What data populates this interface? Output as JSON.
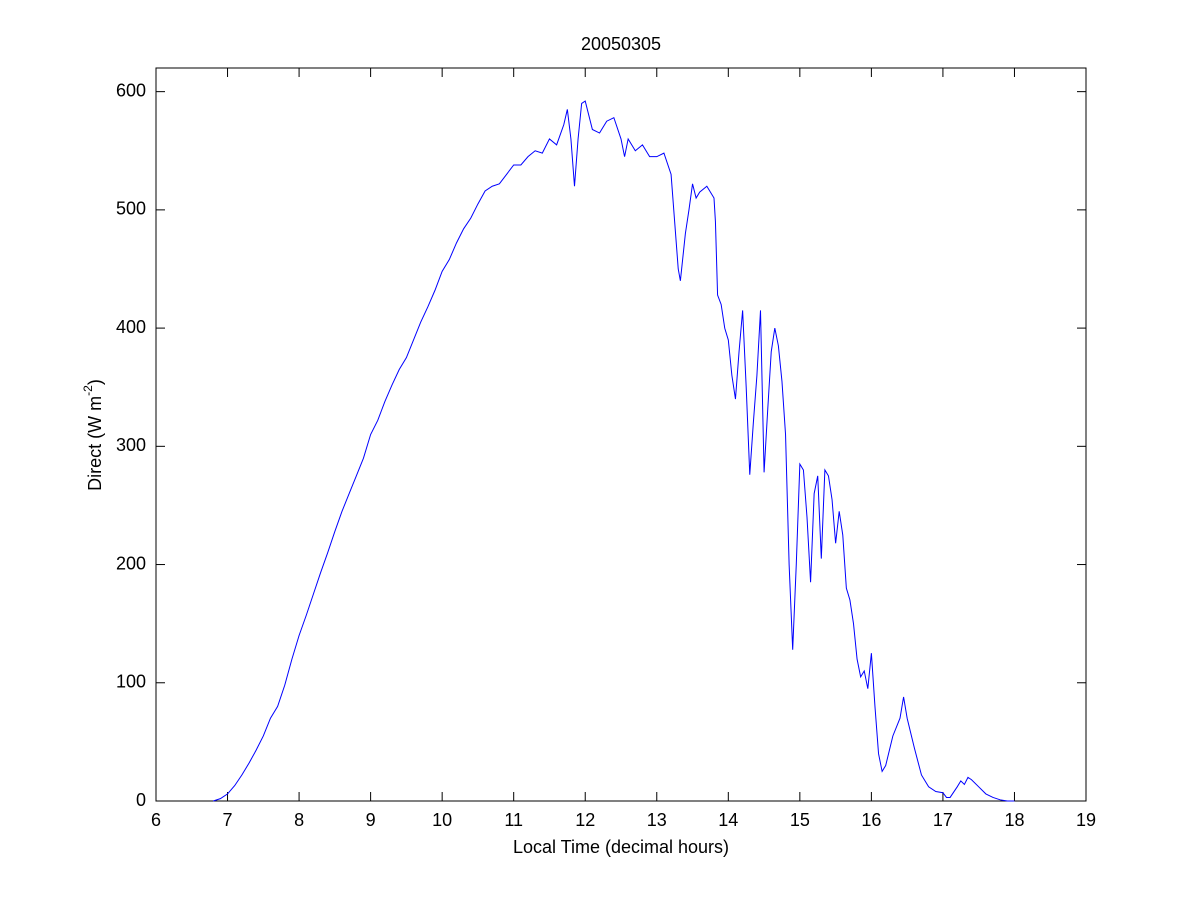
{
  "chart_data": {
    "type": "line",
    "title": "20050305",
    "xlabel": "Local Time (decimal hours)",
    "ylabel": [
      "Direct (W m",
      "-2",
      ")"
    ],
    "xlim": [
      6,
      19
    ],
    "xticks": [
      6,
      7,
      8,
      9,
      10,
      11,
      12,
      13,
      14,
      15,
      16,
      17,
      18,
      19
    ],
    "ylim": [
      0,
      620
    ],
    "yticks": [
      0,
      100,
      200,
      300,
      400,
      500,
      600
    ],
    "color": "#0000ff",
    "x": [
      6.8,
      6.9,
      7.0,
      7.1,
      7.2,
      7.3,
      7.4,
      7.5,
      7.6,
      7.7,
      7.8,
      7.9,
      8.0,
      8.1,
      8.2,
      8.3,
      8.4,
      8.5,
      8.6,
      8.7,
      8.8,
      8.9,
      9.0,
      9.1,
      9.2,
      9.3,
      9.4,
      9.5,
      9.6,
      9.7,
      9.8,
      9.9,
      10.0,
      10.1,
      10.2,
      10.3,
      10.4,
      10.5,
      10.6,
      10.7,
      10.8,
      10.9,
      11.0,
      11.1,
      11.2,
      11.3,
      11.4,
      11.5,
      11.6,
      11.7,
      11.75,
      11.8,
      11.85,
      11.9,
      11.95,
      12.0,
      12.1,
      12.2,
      12.3,
      12.4,
      12.5,
      12.55,
      12.6,
      12.7,
      12.8,
      12.9,
      13.0,
      13.1,
      13.2,
      13.25,
      13.3,
      13.33,
      13.4,
      13.45,
      13.5,
      13.55,
      13.6,
      13.7,
      13.8,
      13.82,
      13.85,
      13.9,
      13.95,
      14.0,
      14.05,
      14.1,
      14.15,
      14.2,
      14.25,
      14.3,
      14.35,
      14.4,
      14.45,
      14.5,
      14.55,
      14.6,
      14.65,
      14.7,
      14.75,
      14.8,
      14.85,
      14.9,
      14.95,
      15.0,
      15.05,
      15.1,
      15.15,
      15.2,
      15.25,
      15.3,
      15.35,
      15.4,
      15.45,
      15.5,
      15.55,
      15.6,
      15.65,
      15.7,
      15.75,
      15.8,
      15.85,
      15.9,
      15.95,
      16.0,
      16.05,
      16.1,
      16.15,
      16.2,
      16.3,
      16.4,
      16.45,
      16.5,
      16.6,
      16.7,
      16.8,
      16.9,
      17.0,
      17.05,
      17.1,
      17.2,
      17.25,
      17.3,
      17.35,
      17.4,
      17.5,
      17.6,
      17.7,
      17.8,
      17.9,
      18.0
    ],
    "values": [
      0,
      2,
      6,
      13,
      22,
      32,
      43,
      55,
      70,
      80,
      98,
      120,
      140,
      157,
      175,
      193,
      210,
      228,
      245,
      260,
      275,
      290,
      310,
      322,
      338,
      352,
      365,
      375,
      390,
      405,
      418,
      432,
      448,
      458,
      472,
      484,
      493,
      505,
      516,
      520,
      522,
      530,
      538,
      538,
      545,
      550,
      548,
      560,
      555,
      572,
      585,
      560,
      520,
      560,
      590,
      592,
      568,
      565,
      575,
      578,
      560,
      545,
      560,
      550,
      555,
      545,
      545,
      548,
      530,
      490,
      450,
      440,
      480,
      500,
      522,
      510,
      515,
      520,
      510,
      490,
      428,
      420,
      400,
      390,
      360,
      340,
      380,
      415,
      350,
      276,
      320,
      360,
      415,
      278,
      330,
      380,
      400,
      385,
      355,
      310,
      200,
      128,
      200,
      285,
      280,
      240,
      185,
      260,
      275,
      205,
      280,
      275,
      255,
      218,
      245,
      225,
      180,
      170,
      150,
      120,
      105,
      110,
      95,
      125,
      80,
      40,
      25,
      30,
      55,
      70,
      88,
      70,
      45,
      22,
      12,
      8,
      7,
      3,
      3,
      12,
      17,
      14,
      20,
      18,
      12,
      6,
      3,
      1,
      0,
      0
    ]
  }
}
